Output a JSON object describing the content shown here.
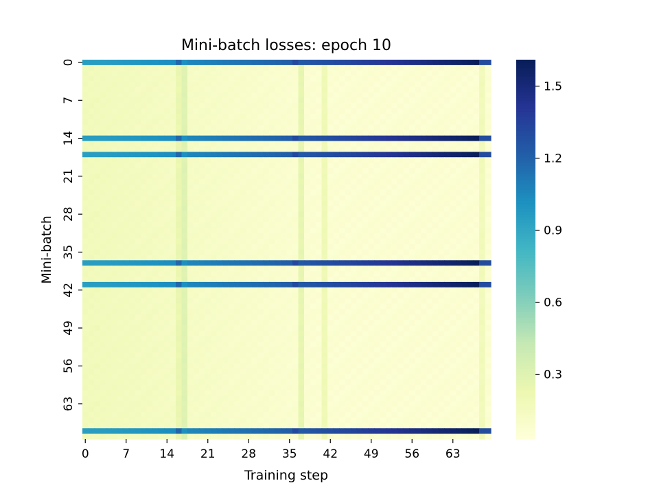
{
  "chart_data": {
    "type": "heatmap",
    "title": "Mini-batch losses: epoch 10",
    "xlabel": "Training step",
    "ylabel": "Mini-batch",
    "n_rows": 70,
    "n_cols": 70,
    "x_ticks": [
      0,
      7,
      14,
      21,
      28,
      35,
      42,
      49,
      56,
      63
    ],
    "y_ticks": [
      0,
      7,
      14,
      21,
      28,
      35,
      42,
      49,
      56,
      63
    ],
    "colorbar": {
      "colormap": "YlGnBu",
      "vmin": 0.03,
      "vmax": 1.61,
      "ticks": [
        "0.3",
        "0.6",
        "0.9",
        "1.2",
        "1.5"
      ]
    },
    "high_loss_rows": [
      0,
      14,
      17,
      37,
      41,
      68
    ],
    "high_row_profile": {
      "start": 0.95,
      "end": 1.6,
      "last_two_cols": 1.3,
      "dip_cols": {
        "16": 1.18,
        "17": 1.02,
        "36": 1.32
      }
    },
    "low_row_profile": {
      "start": 0.18,
      "end": 0.07,
      "brighter_cols": {
        "17": 0.3,
        "16": 0.24,
        "37": 0.26,
        "41": 0.2,
        "68": 0.18
      }
    }
  }
}
